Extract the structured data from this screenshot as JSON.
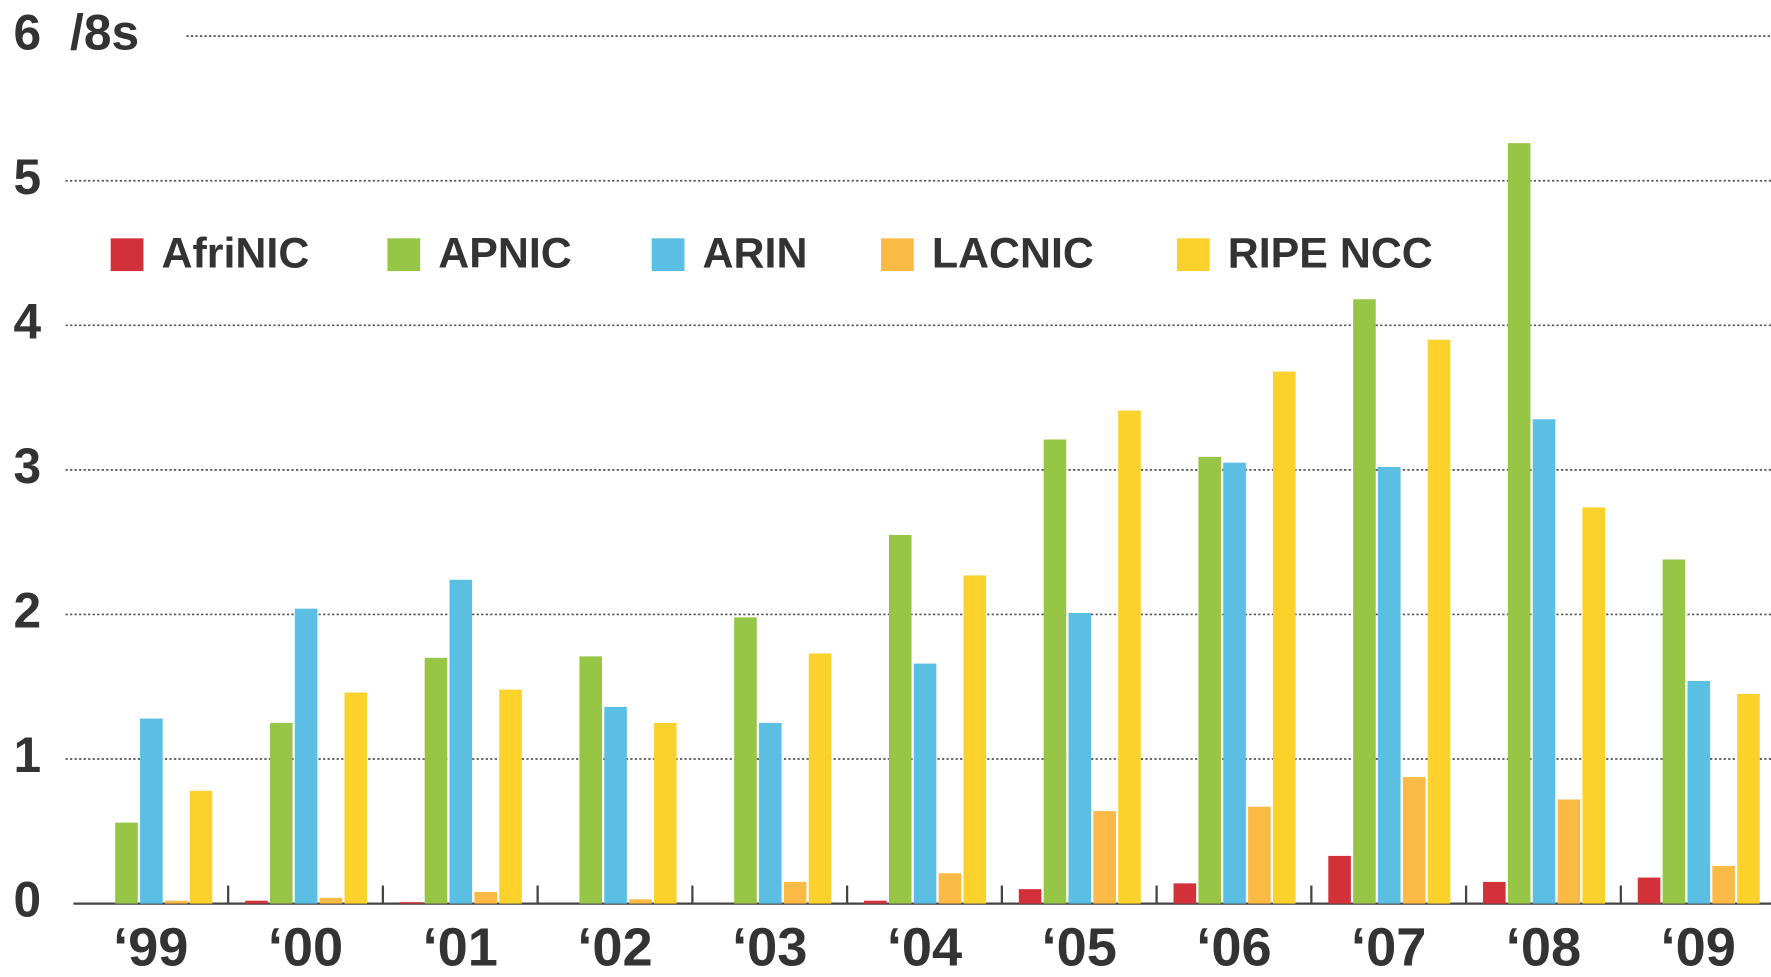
{
  "chart_data": {
    "type": "bar",
    "y_axis_label": "/8s",
    "categories": [
      "‘99",
      "‘00",
      "‘01",
      "‘02",
      "‘03",
      "‘04",
      "‘05",
      "‘06",
      "‘07",
      "‘08",
      "‘09"
    ],
    "series": [
      {
        "name": "AfriNIC",
        "color": "#d3313a",
        "values": [
          0,
          0.02,
          0.01,
          0,
          0,
          0.02,
          0.1,
          0.14,
          0.33,
          0.15,
          0.18
        ]
      },
      {
        "name": "APNIC",
        "color": "#97c647",
        "values": [
          0.56,
          1.25,
          1.7,
          1.71,
          1.98,
          2.55,
          3.21,
          3.09,
          4.18,
          5.26,
          2.38
        ]
      },
      {
        "name": "ARIN",
        "color": "#5bbfe3",
        "values": [
          1.28,
          2.04,
          2.24,
          1.36,
          1.25,
          1.66,
          2.01,
          3.05,
          3.02,
          3.35,
          1.54
        ]
      },
      {
        "name": "LACNIC",
        "color": "#fbb945",
        "values": [
          0.02,
          0.04,
          0.08,
          0.03,
          0.15,
          0.21,
          0.64,
          0.67,
          0.875,
          0.72,
          0.26
        ]
      },
      {
        "name": "RIPE NCC",
        "color": "#fbd22c",
        "values": [
          0.78,
          1.46,
          1.48,
          1.25,
          1.73,
          2.27,
          3.41,
          3.68,
          3.9,
          2.74,
          1.45
        ]
      }
    ],
    "ylim": [
      0,
      6
    ],
    "yticks": [
      0,
      1,
      2,
      3,
      4,
      5,
      6
    ],
    "grid": true,
    "legend": "top"
  }
}
